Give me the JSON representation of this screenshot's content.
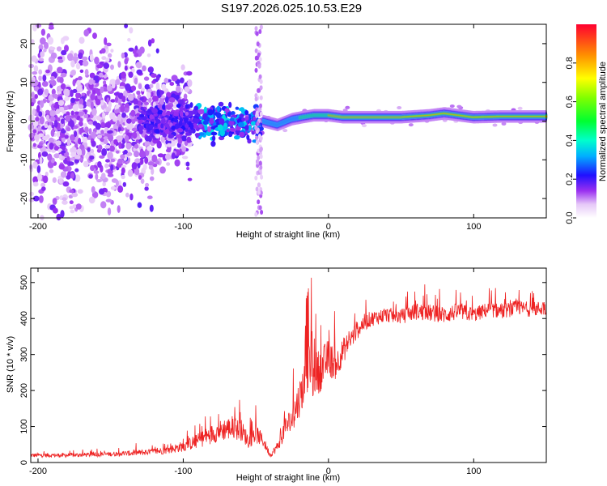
{
  "title": "S197.2026.025.10.53.E29",
  "chart_data": [
    {
      "type": "heatmap",
      "title": "S197.2026.025.10.53.E29",
      "xlabel": "Height of straight line (km)",
      "ylabel": "Frequency (Hz)",
      "xlim": [
        -205,
        150
      ],
      "ylim": [
        -25,
        25
      ],
      "xticks": [
        -200,
        -100,
        0,
        100
      ],
      "yticks": [
        -20,
        -10,
        0,
        10,
        20
      ],
      "xtick_labels": [
        "-200",
        "-100",
        "0",
        "100"
      ],
      "ytick_labels": [
        "-20",
        "-10",
        "0",
        "10",
        "20"
      ],
      "colorbar": {
        "label": "Normalized spectral amplitude",
        "range": [
          0,
          1
        ],
        "ticks": [
          0.0,
          0.2,
          0.4,
          0.6,
          0.8
        ],
        "tick_labels": [
          "0.0",
          "0.2",
          "0.4",
          "0.6",
          "0.8"
        ]
      },
      "ridge": {
        "x": [
          -45,
          -35,
          -25,
          -18,
          -10,
          -5,
          0,
          10,
          30,
          50,
          70,
          80,
          90,
          100,
          120,
          150
        ],
        "y": [
          0,
          -1,
          0.5,
          1,
          1.5,
          1.5,
          1.5,
          1,
          1,
          1,
          1.5,
          2,
          1.5,
          1,
          1.2,
          1.2
        ]
      },
      "colors": {
        "background": "#ffffff"
      }
    },
    {
      "type": "line",
      "xlabel": "Height of straight line (km)",
      "ylabel": "SNR (10 * v/v)",
      "xlim": [
        -205,
        150
      ],
      "ylim": [
        0,
        540
      ],
      "xticks": [
        -200,
        -100,
        0,
        100
      ],
      "yticks": [
        0,
        100,
        200,
        300,
        400,
        500
      ],
      "xtick_labels": [
        "-200",
        "-100",
        "0",
        "100"
      ],
      "ytick_labels": [
        "0",
        "100",
        "200",
        "300",
        "400",
        "500"
      ],
      "series": [
        {
          "name": "SNR",
          "color": "#ee2222",
          "x": [
            -205,
            -180,
            -160,
            -140,
            -120,
            -110,
            -100,
            -90,
            -80,
            -70,
            -60,
            -55,
            -50,
            -45,
            -40,
            -35,
            -30,
            -25,
            -20,
            -15,
            -12,
            -10,
            -5,
            0,
            5,
            10,
            15,
            20,
            25,
            30,
            40,
            50,
            60,
            70,
            80,
            90,
            100,
            110,
            120,
            130,
            140,
            150
          ],
          "values": [
            20,
            20,
            22,
            25,
            30,
            35,
            45,
            60,
            80,
            95,
            90,
            60,
            80,
            60,
            20,
            45,
            95,
            120,
            180,
            240,
            300,
            240,
            260,
            290,
            270,
            310,
            340,
            370,
            390,
            400,
            410,
            405,
            420,
            415,
            410,
            420,
            410,
            425,
            420,
            430,
            425,
            430
          ],
          "noise": [
            10,
            10,
            10,
            12,
            15,
            18,
            25,
            35,
            45,
            55,
            50,
            35,
            45,
            30,
            10,
            25,
            50,
            70,
            90,
            110,
            180,
            110,
            100,
            90,
            70,
            60,
            50,
            45,
            40,
            35,
            35,
            35,
            40,
            40,
            40,
            40,
            35,
            35,
            35,
            35,
            35,
            35
          ]
        }
      ]
    }
  ]
}
